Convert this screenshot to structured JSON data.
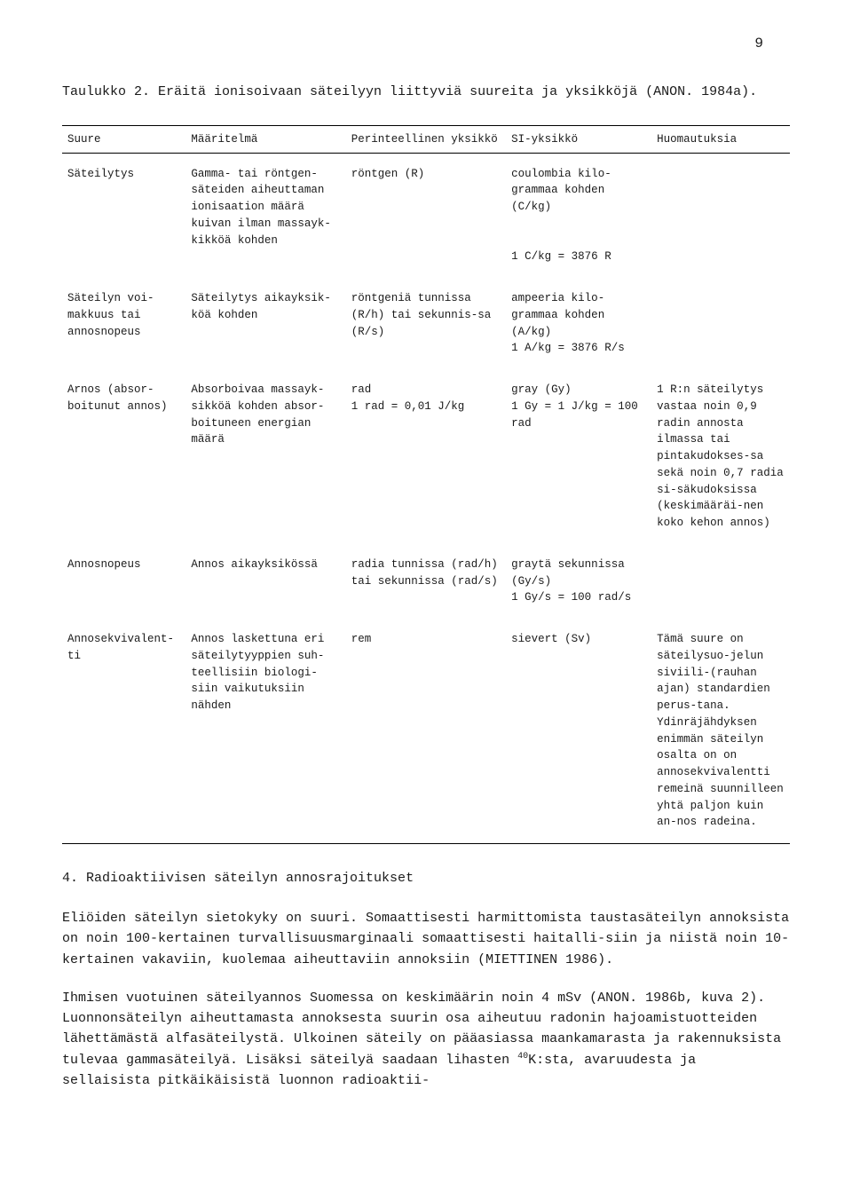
{
  "page_number": "9",
  "caption": "Taulukko 2. Eräitä ionisoivaan säteilyyn liittyviä suureita ja yksikköjä (ANON. 1984a).",
  "table": {
    "headers": {
      "c0": "Suure",
      "c1": "Määritelmä",
      "c2": "Perinteellinen yksikkö",
      "c3": "SI-yksikkö",
      "c4": "Huomautuksia"
    },
    "rows": [
      {
        "c0": "Säteilytys",
        "c1": "Gamma- tai röntgen-säteiden aiheuttaman ionisaation määrä kuivan ilman massayk-kikköä kohden",
        "c2": "röntgen (R)",
        "c3": "coulombia kilo-grammaa kohden (C/kg)\n\n1 C/kg = 3876 R",
        "c4": ""
      },
      {
        "c0": "Säteilyn voi-makkuus tai annosnopeus",
        "c1": "Säteilytys aikayksik-köä kohden",
        "c2": "röntgeniä tunnissa (R/h) tai sekunnis-sa (R/s)",
        "c3": "ampeeria kilo-grammaa kohden (A/kg)\n1 A/kg = 3876 R/s",
        "c4": ""
      },
      {
        "c0": "Arnos (absor-boitunut annos)",
        "c1": "Absorboivaa massayk-sikköä kohden absor-boituneen energian määrä",
        "c2": "rad\n1 rad = 0,01 J/kg",
        "c3": "gray (Gy)\n1 Gy = 1 J/kg = 100 rad",
        "c4": "1 R:n säteilytys vastaa noin 0,9 radin annosta ilmassa tai pintakudokses-sa sekä noin 0,7 radia si-säkudoksissa (keskimääräi-nen koko kehon annos)"
      },
      {
        "c0": "Annosnopeus",
        "c1": "Annos aikayksikössä",
        "c2": "radia tunnissa (rad/h) tai sekunnissa (rad/s)",
        "c3": "graytä sekunnissa (Gy/s)\n1 Gy/s = 100 rad/s",
        "c4": ""
      },
      {
        "c0": "Annosekvivalent-ti",
        "c1": "Annos laskettuna eri säteilytyyppien suh-teellisiin biologi-siin vaikutuksiin nähden",
        "c2": "rem",
        "c3": "sievert (Sv)",
        "c4": "Tämä suure on säteilysuo-jelun siviili-(rauhan ajan) standardien perus-tana. Ydinräjähdyksen enimmän säteilyn osalta on on annosekvivalentti remeinä suunnilleen yhtä paljon kuin an-nos radeina."
      }
    ]
  },
  "heading": "4. Radioaktiivisen säteilyn annosrajoitukset",
  "para1": "Eliöiden säteilyn sietokyky on suuri. Somaattisesti harmittomista taustasäteilyn annoksista on noin 100-kertainen turvallisuusmarginaali somaattisesti haitalli-siin ja niistä noin 10-kertainen vakaviin, kuolemaa aiheuttaviin annoksiin (MIETTINEN 1986).",
  "para2_a": "Ihmisen vuotuinen säteilyannos Suomessa on keskimäärin noin 4 mSv (ANON. 1986b, kuva 2). Luonnonsäteilyn aiheuttamasta annoksesta suurin osa aiheutuu radonin hajoamistuotteiden lähettämästä alfasäteilystä. Ulkoinen säteily on pääasiassa maankamarasta ja rakennuksista tulevaa gammasäteilyä. Lisäksi säteilyä saadaan lihasten ",
  "para2_sup": "40",
  "para2_b": "K:sta, avaruudesta ja sellaisista pitkäikäisistä luonnon radioaktii-"
}
